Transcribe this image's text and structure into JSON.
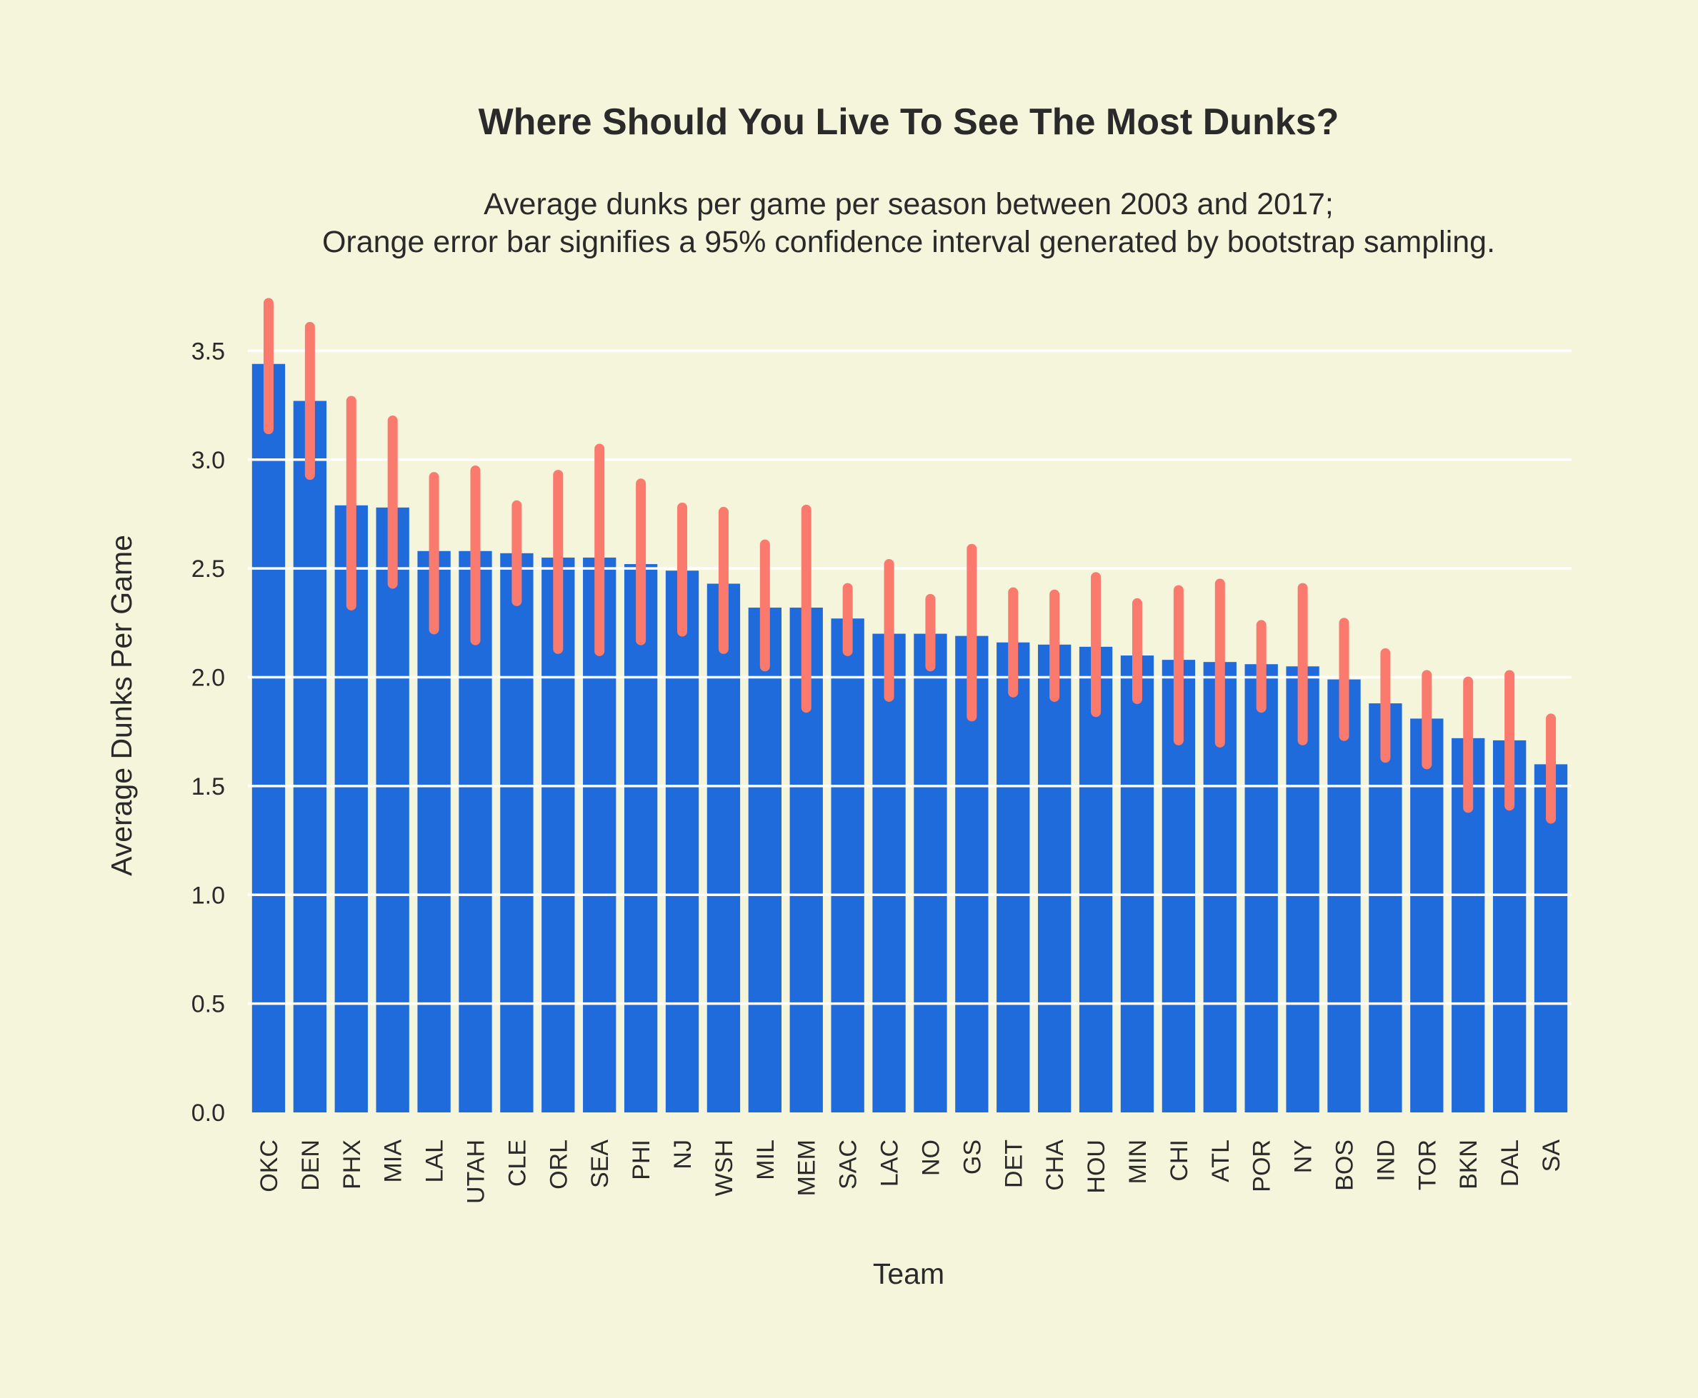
{
  "chart_data": {
    "type": "bar",
    "title": "Where Should You Live To See The Most Dunks?",
    "subtitle_lines": [
      "Average dunks per game per season between 2003 and 2017;",
      "Orange error bar signifies a 95% confidence interval generated by bootstrap sampling."
    ],
    "xlabel": "Team",
    "ylabel": "Average Dunks Per Game",
    "ylim": [
      0,
      3.8
    ],
    "yticks": [
      "0.0",
      "0.5",
      "1.0",
      "1.5",
      "2.0",
      "2.5",
      "3.0",
      "3.5"
    ],
    "grid": true,
    "legend": "none",
    "categories": [
      "OKC",
      "DEN",
      "PHX",
      "MIA",
      "LAL",
      "UTAH",
      "CLE",
      "ORL",
      "SEA",
      "PHI",
      "NJ",
      "WSH",
      "MIL",
      "MEM",
      "SAC",
      "LAC",
      "NO",
      "GS",
      "DET",
      "CHA",
      "HOU",
      "MIN",
      "CHI",
      "ATL",
      "POR",
      "NY",
      "BOS",
      "IND",
      "TOR",
      "BKN",
      "DAL",
      "SA"
    ],
    "values": [
      3.44,
      3.27,
      2.79,
      2.78,
      2.58,
      2.58,
      2.57,
      2.55,
      2.55,
      2.52,
      2.49,
      2.43,
      2.32,
      2.32,
      2.27,
      2.2,
      2.2,
      2.19,
      2.16,
      2.15,
      2.14,
      2.1,
      2.08,
      2.07,
      2.06,
      2.05,
      1.99,
      1.88,
      1.81,
      1.72,
      1.71,
      1.6
    ],
    "ci_low": [
      3.14,
      2.93,
      2.33,
      2.43,
      2.22,
      2.17,
      2.35,
      2.13,
      2.12,
      2.17,
      2.21,
      2.13,
      2.05,
      1.86,
      2.12,
      1.91,
      2.05,
      1.82,
      1.93,
      1.91,
      1.84,
      1.9,
      1.71,
      1.7,
      1.86,
      1.71,
      1.73,
      1.63,
      1.6,
      1.4,
      1.41,
      1.35
    ],
    "ci_high": [
      3.72,
      3.61,
      3.27,
      3.18,
      2.92,
      2.95,
      2.79,
      2.93,
      3.05,
      2.89,
      2.78,
      2.76,
      2.61,
      2.77,
      2.41,
      2.52,
      2.36,
      2.59,
      2.39,
      2.38,
      2.46,
      2.34,
      2.4,
      2.43,
      2.24,
      2.41,
      2.25,
      2.11,
      2.01,
      1.98,
      2.01,
      1.81
    ],
    "colors": {
      "background": "#f5f5dc",
      "bar": "#206bdc",
      "error_bar": "#fb7a6e",
      "grid": "#ffffff",
      "text": "#2a2a2a"
    }
  }
}
